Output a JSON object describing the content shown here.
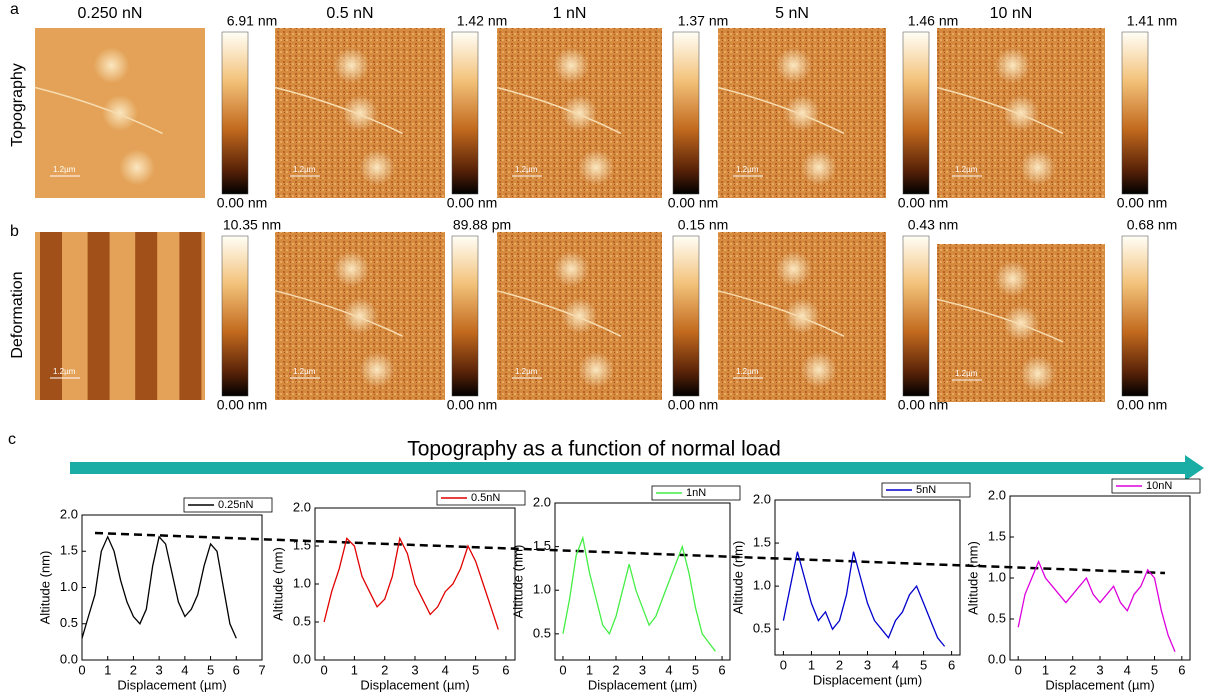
{
  "panel_labels": [
    "a",
    "b",
    "c"
  ],
  "row_labels": [
    "Topography",
    "Deformation"
  ],
  "loads": [
    "0.250 nN",
    "0.5 nN",
    "1 nN",
    "5 nN",
    "10 nN"
  ],
  "scale_bar": "1.2µm",
  "topography": {
    "max_labels": [
      "6.91 nm",
      "1.42 nm",
      "1.37 nm",
      "1.46 nm",
      "1.41 nm"
    ],
    "min_labels": [
      "0.00 nm",
      "0.00 nm",
      "0.00 nm",
      "0.00 nm",
      "0.00 nm"
    ]
  },
  "deformation": {
    "max_labels": [
      "10.35 nm",
      "89.88 pm",
      "0.15 nm",
      "0.43 nm",
      "0.68 nm"
    ],
    "min_labels": [
      "0.00 nm",
      "0.00 nm",
      "0.00 nm",
      "0.00 nm",
      "0.00 nm"
    ]
  },
  "arrow_title": "Topography as a function of normal load",
  "chart_data": [
    {
      "type": "line",
      "x_label": "Displacement (µm)",
      "y_label": "Altitude (nm)",
      "legend": "top-right",
      "x": [
        0,
        0.25,
        0.5,
        0.75,
        1,
        1.25,
        1.5,
        1.75,
        2,
        2.25,
        2.5,
        2.75,
        3,
        3.25,
        3.5,
        3.75,
        4,
        4.25,
        4.5,
        4.75,
        5,
        5.25,
        5.5,
        5.75,
        6
      ],
      "series": [
        {
          "name": "0.25nN",
          "color": "#000000",
          "values": [
            0.3,
            0.6,
            0.9,
            1.5,
            1.7,
            1.5,
            1.1,
            0.8,
            0.6,
            0.5,
            0.7,
            1.3,
            1.7,
            1.6,
            1.2,
            0.8,
            0.6,
            0.7,
            0.9,
            1.3,
            1.6,
            1.5,
            1.0,
            0.5,
            0.3
          ]
        }
      ],
      "xlim": [
        0,
        7
      ],
      "xticks": [
        0,
        1,
        2,
        3,
        4,
        5,
        6,
        7
      ],
      "ylim": [
        0,
        2
      ],
      "yticks": [
        {
          "value": 0,
          "label": "0.0"
        },
        0.5,
        {
          "value": 1,
          "label": "1.0"
        },
        1.5,
        {
          "value": 2,
          "label": "2.0"
        }
      ]
    },
    {
      "type": "line",
      "x_label": "Displacement (µm)",
      "y_label": "Altitude (nm)",
      "legend": "top-right",
      "x": [
        0,
        0.25,
        0.5,
        0.75,
        1,
        1.25,
        1.5,
        1.75,
        2,
        2.25,
        2.5,
        2.75,
        3,
        3.25,
        3.5,
        3.75,
        4,
        4.25,
        4.5,
        4.75,
        5,
        5.25,
        5.5,
        5.75
      ],
      "series": [
        {
          "name": "0.5nN",
          "color": "#e00000",
          "values": [
            0.5,
            0.9,
            1.2,
            1.6,
            1.5,
            1.1,
            0.9,
            0.7,
            0.8,
            1.1,
            1.6,
            1.4,
            1.0,
            0.8,
            0.6,
            0.7,
            0.9,
            1.0,
            1.2,
            1.5,
            1.3,
            1.0,
            0.7,
            0.4
          ]
        }
      ],
      "xlim": [
        -0.3,
        6.3
      ],
      "xticks": [
        0,
        1,
        2,
        3,
        4,
        5,
        6
      ],
      "ylim": [
        0,
        2
      ],
      "yticks": [
        {
          "value": 0,
          "label": "0.0"
        },
        0.5,
        {
          "value": 1,
          "label": "1.0"
        },
        1.5,
        {
          "value": 2,
          "label": "2.0"
        }
      ]
    },
    {
      "type": "line",
      "x_label": "Displacement (µm)",
      "y_label": "Altitude (nm)",
      "legend": "top-right",
      "x": [
        0,
        0.25,
        0.5,
        0.75,
        1,
        1.25,
        1.5,
        1.75,
        2,
        2.25,
        2.5,
        2.75,
        3,
        3.25,
        3.5,
        3.75,
        4,
        4.25,
        4.5,
        4.75,
        5,
        5.25,
        5.5,
        5.75
      ],
      "series": [
        {
          "name": "1nN",
          "color": "#44ee44",
          "values": [
            0.5,
            0.9,
            1.4,
            1.6,
            1.2,
            0.9,
            0.6,
            0.5,
            0.7,
            1.0,
            1.3,
            1.0,
            0.8,
            0.6,
            0.7,
            0.9,
            1.1,
            1.3,
            1.5,
            1.2,
            0.8,
            0.5,
            0.4,
            0.3
          ]
        }
      ],
      "xlim": [
        -0.3,
        6.3
      ],
      "xticks": [
        0,
        1,
        2,
        3,
        4,
        5,
        6
      ],
      "ylim": [
        0.2,
        2
      ],
      "yticks": [
        0.5,
        {
          "value": 1,
          "label": "1.0"
        },
        1.5,
        {
          "value": 2,
          "label": "2.0"
        }
      ]
    },
    {
      "type": "line",
      "x_label": "Displacement (µm)",
      "y_label": "Altitude (nm)",
      "legend": "top-right",
      "x": [
        0,
        0.25,
        0.5,
        0.75,
        1,
        1.25,
        1.5,
        1.75,
        2,
        2.25,
        2.5,
        2.75,
        3,
        3.25,
        3.5,
        3.75,
        4,
        4.25,
        4.5,
        4.75,
        5,
        5.25,
        5.5,
        5.75
      ],
      "series": [
        {
          "name": "5nN",
          "color": "#0000cc",
          "values": [
            0.6,
            1.0,
            1.4,
            1.1,
            0.8,
            0.6,
            0.7,
            0.5,
            0.6,
            0.9,
            1.4,
            1.1,
            0.8,
            0.6,
            0.5,
            0.4,
            0.6,
            0.7,
            0.9,
            1.0,
            0.8,
            0.6,
            0.4,
            0.3
          ]
        }
      ],
      "xlim": [
        -0.3,
        6.3
      ],
      "xticks": [
        0,
        1,
        2,
        3,
        4,
        5,
        6
      ],
      "ylim": [
        0.2,
        2
      ],
      "yticks": [
        0.5,
        {
          "value": 1,
          "label": "1.0"
        },
        1.5,
        {
          "value": 2,
          "label": "2.0"
        }
      ]
    },
    {
      "type": "line",
      "x_label": "Displacement (µm)",
      "y_label": "Altitude (nm)",
      "legend": "top-right",
      "x": [
        0,
        0.25,
        0.5,
        0.75,
        1,
        1.25,
        1.5,
        1.75,
        2,
        2.25,
        2.5,
        2.75,
        3,
        3.25,
        3.5,
        3.75,
        4,
        4.25,
        4.5,
        4.75,
        5,
        5.25,
        5.5,
        5.75
      ],
      "series": [
        {
          "name": "10nN",
          "color": "#dd00dd",
          "values": [
            0.4,
            0.8,
            1.0,
            1.2,
            1.0,
            0.9,
            0.8,
            0.7,
            0.8,
            0.9,
            1.0,
            0.8,
            0.7,
            0.8,
            0.9,
            0.7,
            0.6,
            0.8,
            0.9,
            1.1,
            1.0,
            0.6,
            0.3,
            0.1
          ]
        }
      ],
      "xlim": [
        -0.3,
        6.3
      ],
      "xticks": [
        0,
        1,
        2,
        3,
        4,
        5,
        6
      ],
      "ylim": [
        0,
        2
      ],
      "yticks": [
        {
          "value": 0,
          "label": "0.0"
        },
        0.5,
        {
          "value": 1,
          "label": "1.0"
        },
        1.5,
        {
          "value": 2,
          "label": "2.0"
        }
      ]
    }
  ]
}
